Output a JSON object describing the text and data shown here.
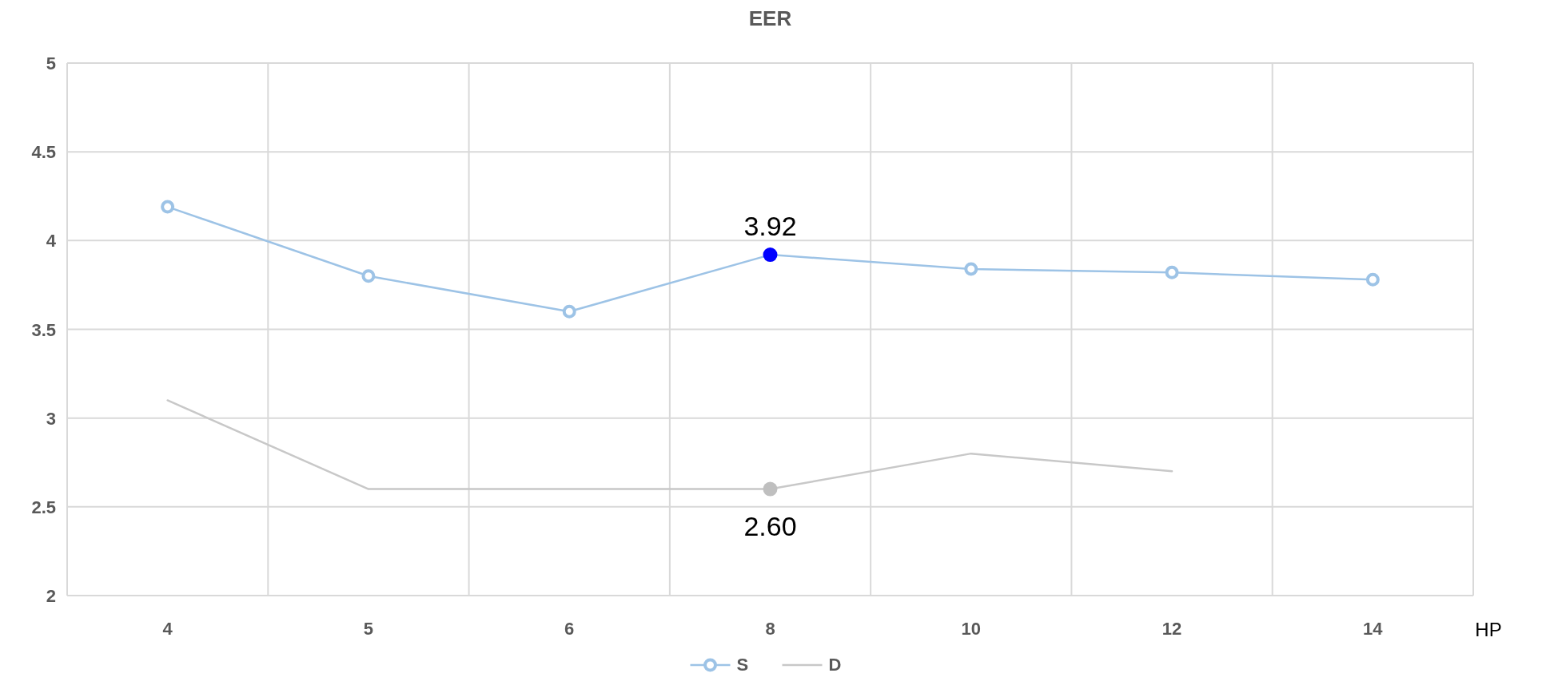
{
  "chart_data": {
    "type": "line",
    "title": "EER",
    "xlabel": "HP",
    "categories": [
      "4",
      "5",
      "6",
      "8",
      "10",
      "12",
      "14"
    ],
    "ylim": [
      2,
      5
    ],
    "yticks": [
      2,
      2.5,
      3,
      3.5,
      4,
      4.5,
      5
    ],
    "grid": true,
    "legend": "bottom",
    "series": [
      {
        "name": "S",
        "color": "#9dc3e6",
        "marker": "circle",
        "values": [
          4.19,
          3.8,
          3.6,
          3.92,
          3.84,
          3.82,
          3.78
        ],
        "colors": [
          null,
          null,
          null,
          "#0000ff",
          null,
          null,
          null
        ],
        "value_labels": [
          null,
          null,
          null,
          "3.92",
          null,
          null,
          null
        ]
      },
      {
        "name": "D",
        "color": "#c8c8c8",
        "marker": "none",
        "values": [
          3.1,
          2.6,
          2.6,
          2.6,
          2.8,
          2.7,
          null
        ],
        "colors": [
          null,
          null,
          null,
          "#bfbfbf",
          null,
          null,
          null
        ],
        "value_labels": [
          null,
          null,
          null,
          "2.60",
          null,
          null,
          null
        ]
      }
    ]
  }
}
